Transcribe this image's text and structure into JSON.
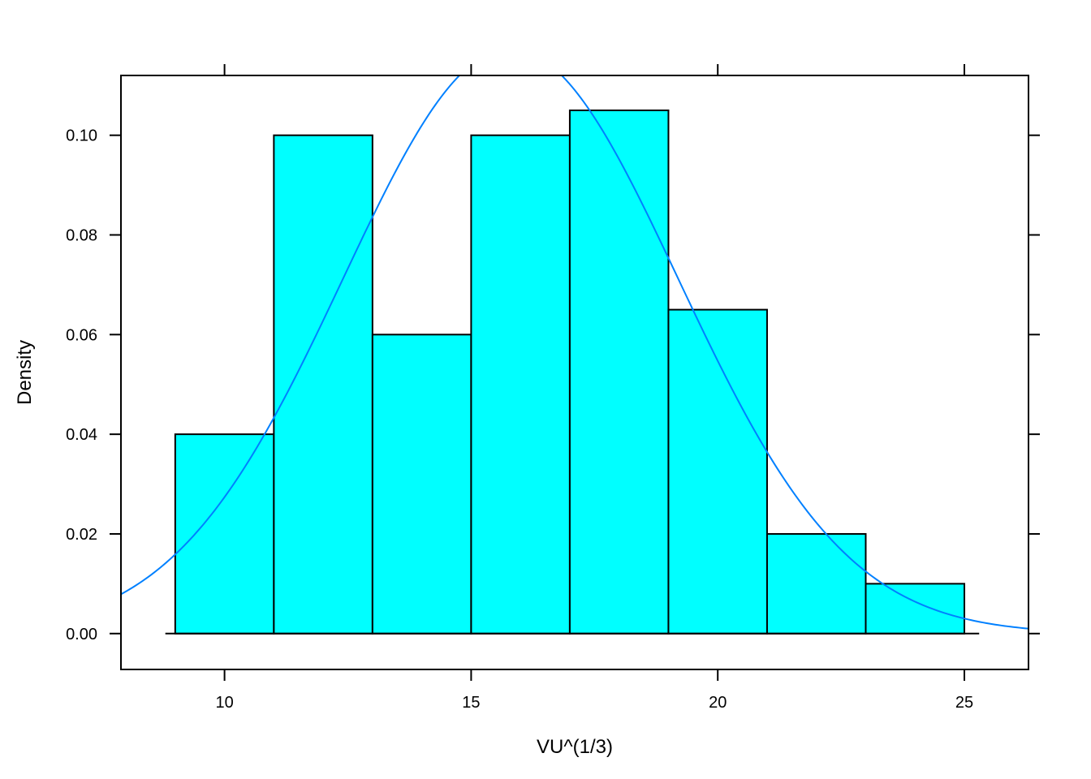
{
  "chart_data": {
    "type": "bar",
    "subtype": "histogram",
    "xlabel": "VU^(1/3)",
    "ylabel": "Density",
    "xlim": [
      7.9,
      26.3
    ],
    "ylim": [
      -0.0072,
      0.112
    ],
    "x_ticks": [
      {
        "value": 10,
        "label": "10"
      },
      {
        "value": 15,
        "label": "15"
      },
      {
        "value": 20,
        "label": "20"
      },
      {
        "value": 25,
        "label": "25"
      }
    ],
    "y_ticks": [
      {
        "value": 0.0,
        "label": "0.00"
      },
      {
        "value": 0.02,
        "label": "0.02"
      },
      {
        "value": 0.04,
        "label": "0.04"
      },
      {
        "value": 0.06,
        "label": "0.06"
      },
      {
        "value": 0.08,
        "label": "0.08"
      },
      {
        "value": 0.1,
        "label": "0.10"
      }
    ],
    "bins": [
      {
        "x0": 9.0,
        "x1": 11.0,
        "density": 0.04
      },
      {
        "x0": 11.0,
        "x1": 13.0,
        "density": 0.1
      },
      {
        "x0": 13.0,
        "x1": 15.0,
        "density": 0.06
      },
      {
        "x0": 15.0,
        "x1": 17.0,
        "density": 0.1
      },
      {
        "x0": 17.0,
        "x1": 19.0,
        "density": 0.105
      },
      {
        "x0": 19.0,
        "x1": 21.0,
        "density": 0.065
      },
      {
        "x0": 21.0,
        "x1": 23.0,
        "density": 0.02
      },
      {
        "x0": 23.0,
        "x1": 25.0,
        "density": 0.01
      }
    ],
    "baseline_range": [
      8.8,
      25.3
    ],
    "density_curve": {
      "type": "normal",
      "mean": 15.8,
      "sd": 3.4
    },
    "grid": false,
    "colors": {
      "bar_fill": "#00FFFF",
      "bar_edge": "#000000",
      "curve": "#0080FF"
    }
  }
}
